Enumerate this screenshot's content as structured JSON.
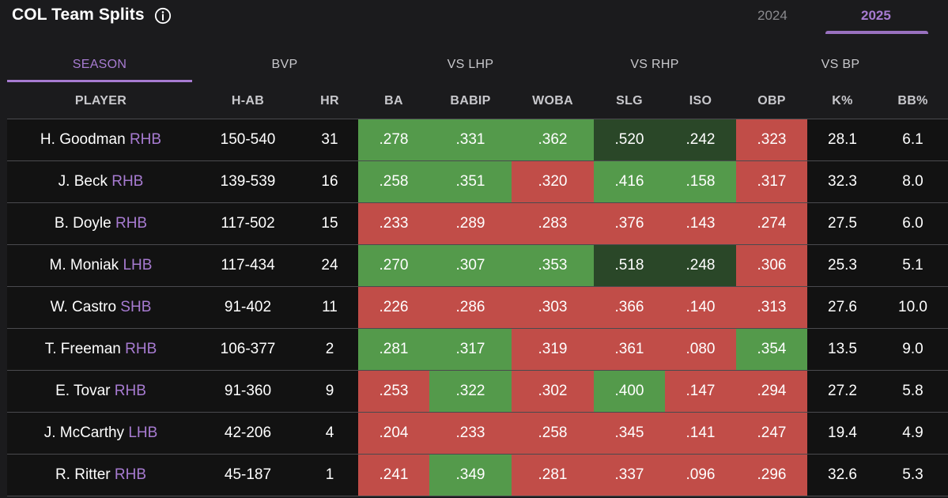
{
  "header": {
    "title": "COL Team Splits",
    "years": [
      "2024",
      "2025"
    ],
    "active_year": "2025"
  },
  "tabs": [
    "SEASON",
    "BVP",
    "VS LHP",
    "VS RHP",
    "VS BP"
  ],
  "active_tab": "SEASON",
  "columns": [
    "PLAYER",
    "H-AB",
    "HR",
    "BA",
    "BABIP",
    "WOBA",
    "SLG",
    "ISO",
    "OBP",
    "K%",
    "BB%"
  ],
  "colors": {
    "red": "#c14d48",
    "green": "#549a4b",
    "dark_green": "#2a4728",
    "accent": "#a77bd1"
  },
  "rows": [
    {
      "name": "H. Goodman",
      "hand": "RHB",
      "hab": "150-540",
      "hr": "31",
      "ba": ".278",
      "babip": ".331",
      "woba": ".362",
      "slg": ".520",
      "iso": ".242",
      "obp": ".323",
      "k": "28.1",
      "bb": "6.1"
    },
    {
      "name": "J. Beck",
      "hand": "RHB",
      "hab": "139-539",
      "hr": "16",
      "ba": ".258",
      "babip": ".351",
      "woba": ".320",
      "slg": ".416",
      "iso": ".158",
      "obp": ".317",
      "k": "32.3",
      "bb": "8.0"
    },
    {
      "name": "B. Doyle",
      "hand": "RHB",
      "hab": "117-502",
      "hr": "15",
      "ba": ".233",
      "babip": ".289",
      "woba": ".283",
      "slg": ".376",
      "iso": ".143",
      "obp": ".274",
      "k": "27.5",
      "bb": "6.0"
    },
    {
      "name": "M. Moniak",
      "hand": "LHB",
      "hab": "117-434",
      "hr": "24",
      "ba": ".270",
      "babip": ".307",
      "woba": ".353",
      "slg": ".518",
      "iso": ".248",
      "obp": ".306",
      "k": "25.3",
      "bb": "5.1"
    },
    {
      "name": "W. Castro",
      "hand": "SHB",
      "hab": "91-402",
      "hr": "11",
      "ba": ".226",
      "babip": ".286",
      "woba": ".303",
      "slg": ".366",
      "iso": ".140",
      "obp": ".313",
      "k": "27.6",
      "bb": "10.0"
    },
    {
      "name": "T. Freeman",
      "hand": "RHB",
      "hab": "106-377",
      "hr": "2",
      "ba": ".281",
      "babip": ".317",
      "woba": ".319",
      "slg": ".361",
      "iso": ".080",
      "obp": ".354",
      "k": "13.5",
      "bb": "9.0"
    },
    {
      "name": "E. Tovar",
      "hand": "RHB",
      "hab": "91-360",
      "hr": "9",
      "ba": ".253",
      "babip": ".322",
      "woba": ".302",
      "slg": ".400",
      "iso": ".147",
      "obp": ".294",
      "k": "27.2",
      "bb": "5.8"
    },
    {
      "name": "J. McCarthy",
      "hand": "LHB",
      "hab": "42-206",
      "hr": "4",
      "ba": ".204",
      "babip": ".233",
      "woba": ".258",
      "slg": ".345",
      "iso": ".141",
      "obp": ".247",
      "k": "19.4",
      "bb": "4.9"
    },
    {
      "name": "R. Ritter",
      "hand": "RHB",
      "hab": "45-187",
      "hr": "1",
      "ba": ".241",
      "babip": ".349",
      "woba": ".281",
      "slg": ".337",
      "iso": ".096",
      "obp": ".296",
      "k": "32.6",
      "bb": "5.3"
    }
  ]
}
